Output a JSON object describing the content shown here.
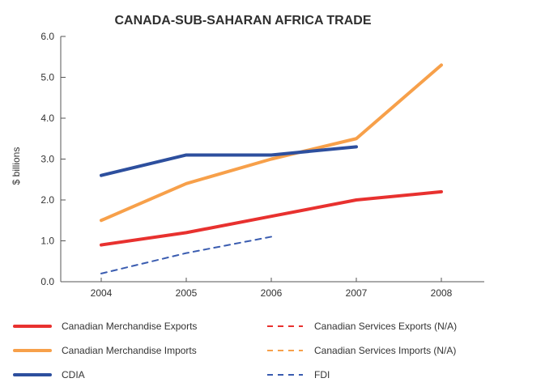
{
  "chart_data": {
    "type": "line",
    "title": "CANADA-SUB-SAHARAN AFRICA TRADE",
    "xlabel": "",
    "ylabel": "$ billions",
    "x": [
      "2004",
      "2005",
      "2006",
      "2007",
      "2008"
    ],
    "ylim": [
      0,
      6
    ],
    "yticks": [
      "0.0",
      "1.0",
      "2.0",
      "3.0",
      "4.0",
      "5.0",
      "6.0"
    ],
    "grid": false,
    "legend_position": "bottom",
    "series": [
      {
        "name": "Canadian Merchandise Exports",
        "color": "#e8312f",
        "style": "solid",
        "values": [
          0.9,
          1.2,
          1.6,
          2.0,
          2.2
        ]
      },
      {
        "name": "Canadian Merchandise Imports",
        "color": "#f7a04a",
        "style": "solid",
        "values": [
          1.5,
          2.4,
          3.0,
          3.5,
          5.3
        ]
      },
      {
        "name": "CDIA",
        "color": "#2d4f9e",
        "style": "solid",
        "values": [
          2.6,
          3.1,
          3.1,
          3.3,
          null
        ]
      },
      {
        "name": "FDI",
        "color": "#3a5cb0",
        "style": "dashed",
        "values": [
          0.2,
          0.7,
          1.1,
          null,
          null
        ]
      },
      {
        "name": "Canadian Services Exports (N/A)",
        "color": "#e8312f",
        "style": "dashed",
        "values": [
          null,
          null,
          null,
          null,
          null
        ]
      },
      {
        "name": "Canadian Services Imports (N/A)",
        "color": "#f7a04a",
        "style": "dashed",
        "values": [
          null,
          null,
          null,
          null,
          null
        ]
      }
    ],
    "legend_order": [
      0,
      4,
      1,
      5,
      2,
      3
    ]
  }
}
